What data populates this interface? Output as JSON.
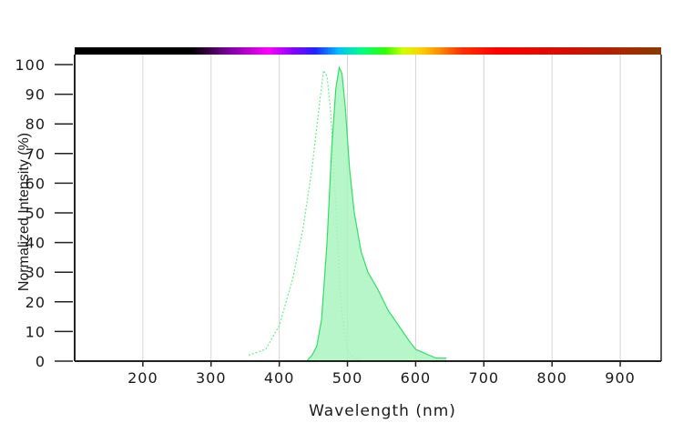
{
  "chart_data": {
    "type": "area",
    "title": "",
    "xlabel": "Wavelength (nm)",
    "ylabel": "Normalized Intensity (%)",
    "xlim": [
      100,
      960
    ],
    "ylim": [
      0,
      100
    ],
    "x_ticks": [
      "200",
      "300",
      "400",
      "500",
      "600",
      "700",
      "800",
      "900"
    ],
    "y_ticks": [
      "0",
      "10",
      "20",
      "30",
      "40",
      "50",
      "60",
      "70",
      "80",
      "90",
      "100"
    ],
    "grid": "vertical lines at x ticks",
    "spectrum_bar": true,
    "series": [
      {
        "style": "dotted line",
        "color": "#66ee88",
        "x": [
          355,
          380,
          400,
          420,
          435,
          448,
          458,
          465,
          470,
          475,
          480,
          485,
          490,
          495,
          500,
          505,
          510,
          520
        ],
        "y": [
          2,
          4,
          12,
          28,
          45,
          65,
          85,
          98,
          96,
          85,
          65,
          42,
          22,
          10,
          4,
          2,
          1,
          0
        ]
      },
      {
        "style": "filled area",
        "color": "#33dd66",
        "fill": "#aaf5c0",
        "x": [
          440,
          448,
          455,
          462,
          470,
          477,
          483,
          488,
          492,
          497,
          503,
          510,
          520,
          530,
          545,
          560,
          575,
          590,
          600,
          610,
          620,
          630,
          645
        ],
        "y": [
          0,
          2,
          5,
          14,
          40,
          72,
          92,
          99,
          97,
          85,
          65,
          50,
          37,
          30,
          24,
          17,
          12,
          7,
          4,
          3,
          2,
          1,
          1
        ]
      }
    ]
  }
}
